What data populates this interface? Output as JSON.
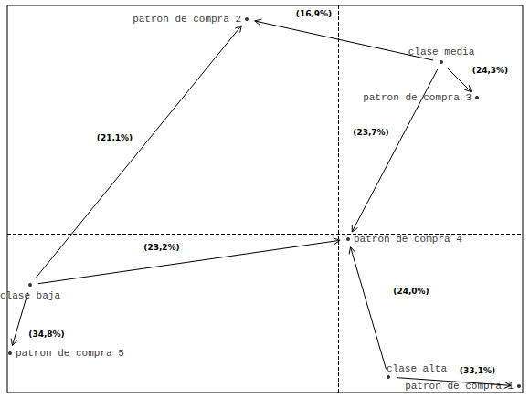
{
  "chart_data": {
    "type": "scatter",
    "xlim": [
      -3.62,
      2.02
    ],
    "ylim": [
      -1.74,
      2.5
    ],
    "xticks": [
      0
    ],
    "yticks": [
      0
    ],
    "grid": true,
    "tick_labels": false,
    "color": "#000000",
    "points": [
      {
        "label": "patron de compra 2",
        "x": -1.0,
        "y": 2.35
      },
      {
        "label": "clase media",
        "x": 1.13,
        "y": 1.88
      },
      {
        "label": "patron de compra 3",
        "x": 1.52,
        "y": 1.49
      },
      {
        "label": "patron de compra 4",
        "x": 0.11,
        "y": -0.06
      },
      {
        "label": "clase baja",
        "x": -3.37,
        "y": -0.56
      },
      {
        "label": "patron de compra 5",
        "x": -3.59,
        "y": -1.31
      },
      {
        "label": "clase alta",
        "x": 0.55,
        "y": -1.57
      },
      {
        "label": "patron de compra 1",
        "x": 1.98,
        "y": -1.67
      }
    ],
    "arrows": [
      {
        "from": "clase media",
        "to": "patron de compra 2",
        "label": "(16,9%)"
      },
      {
        "from": "clase media",
        "to": "patron de compra 3",
        "label": "(24,3%)"
      },
      {
        "from": "clase media",
        "to": "patron de compra 4",
        "label": "(23,7%)"
      },
      {
        "from": "clase baja",
        "to": "patron de compra 2",
        "label": "(21,1%)"
      },
      {
        "from": "clase baja",
        "to": "patron de compra 4",
        "label": "(23,2%)"
      },
      {
        "from": "clase baja",
        "to": "patron de compra 5",
        "label": "(34,8%)"
      },
      {
        "from": "clase alta",
        "to": "patron de compra 4",
        "label": "(24,0%)"
      },
      {
        "from": "clase alta",
        "to": "patron de compra 1",
        "label": "(33,1%)"
      }
    ]
  }
}
